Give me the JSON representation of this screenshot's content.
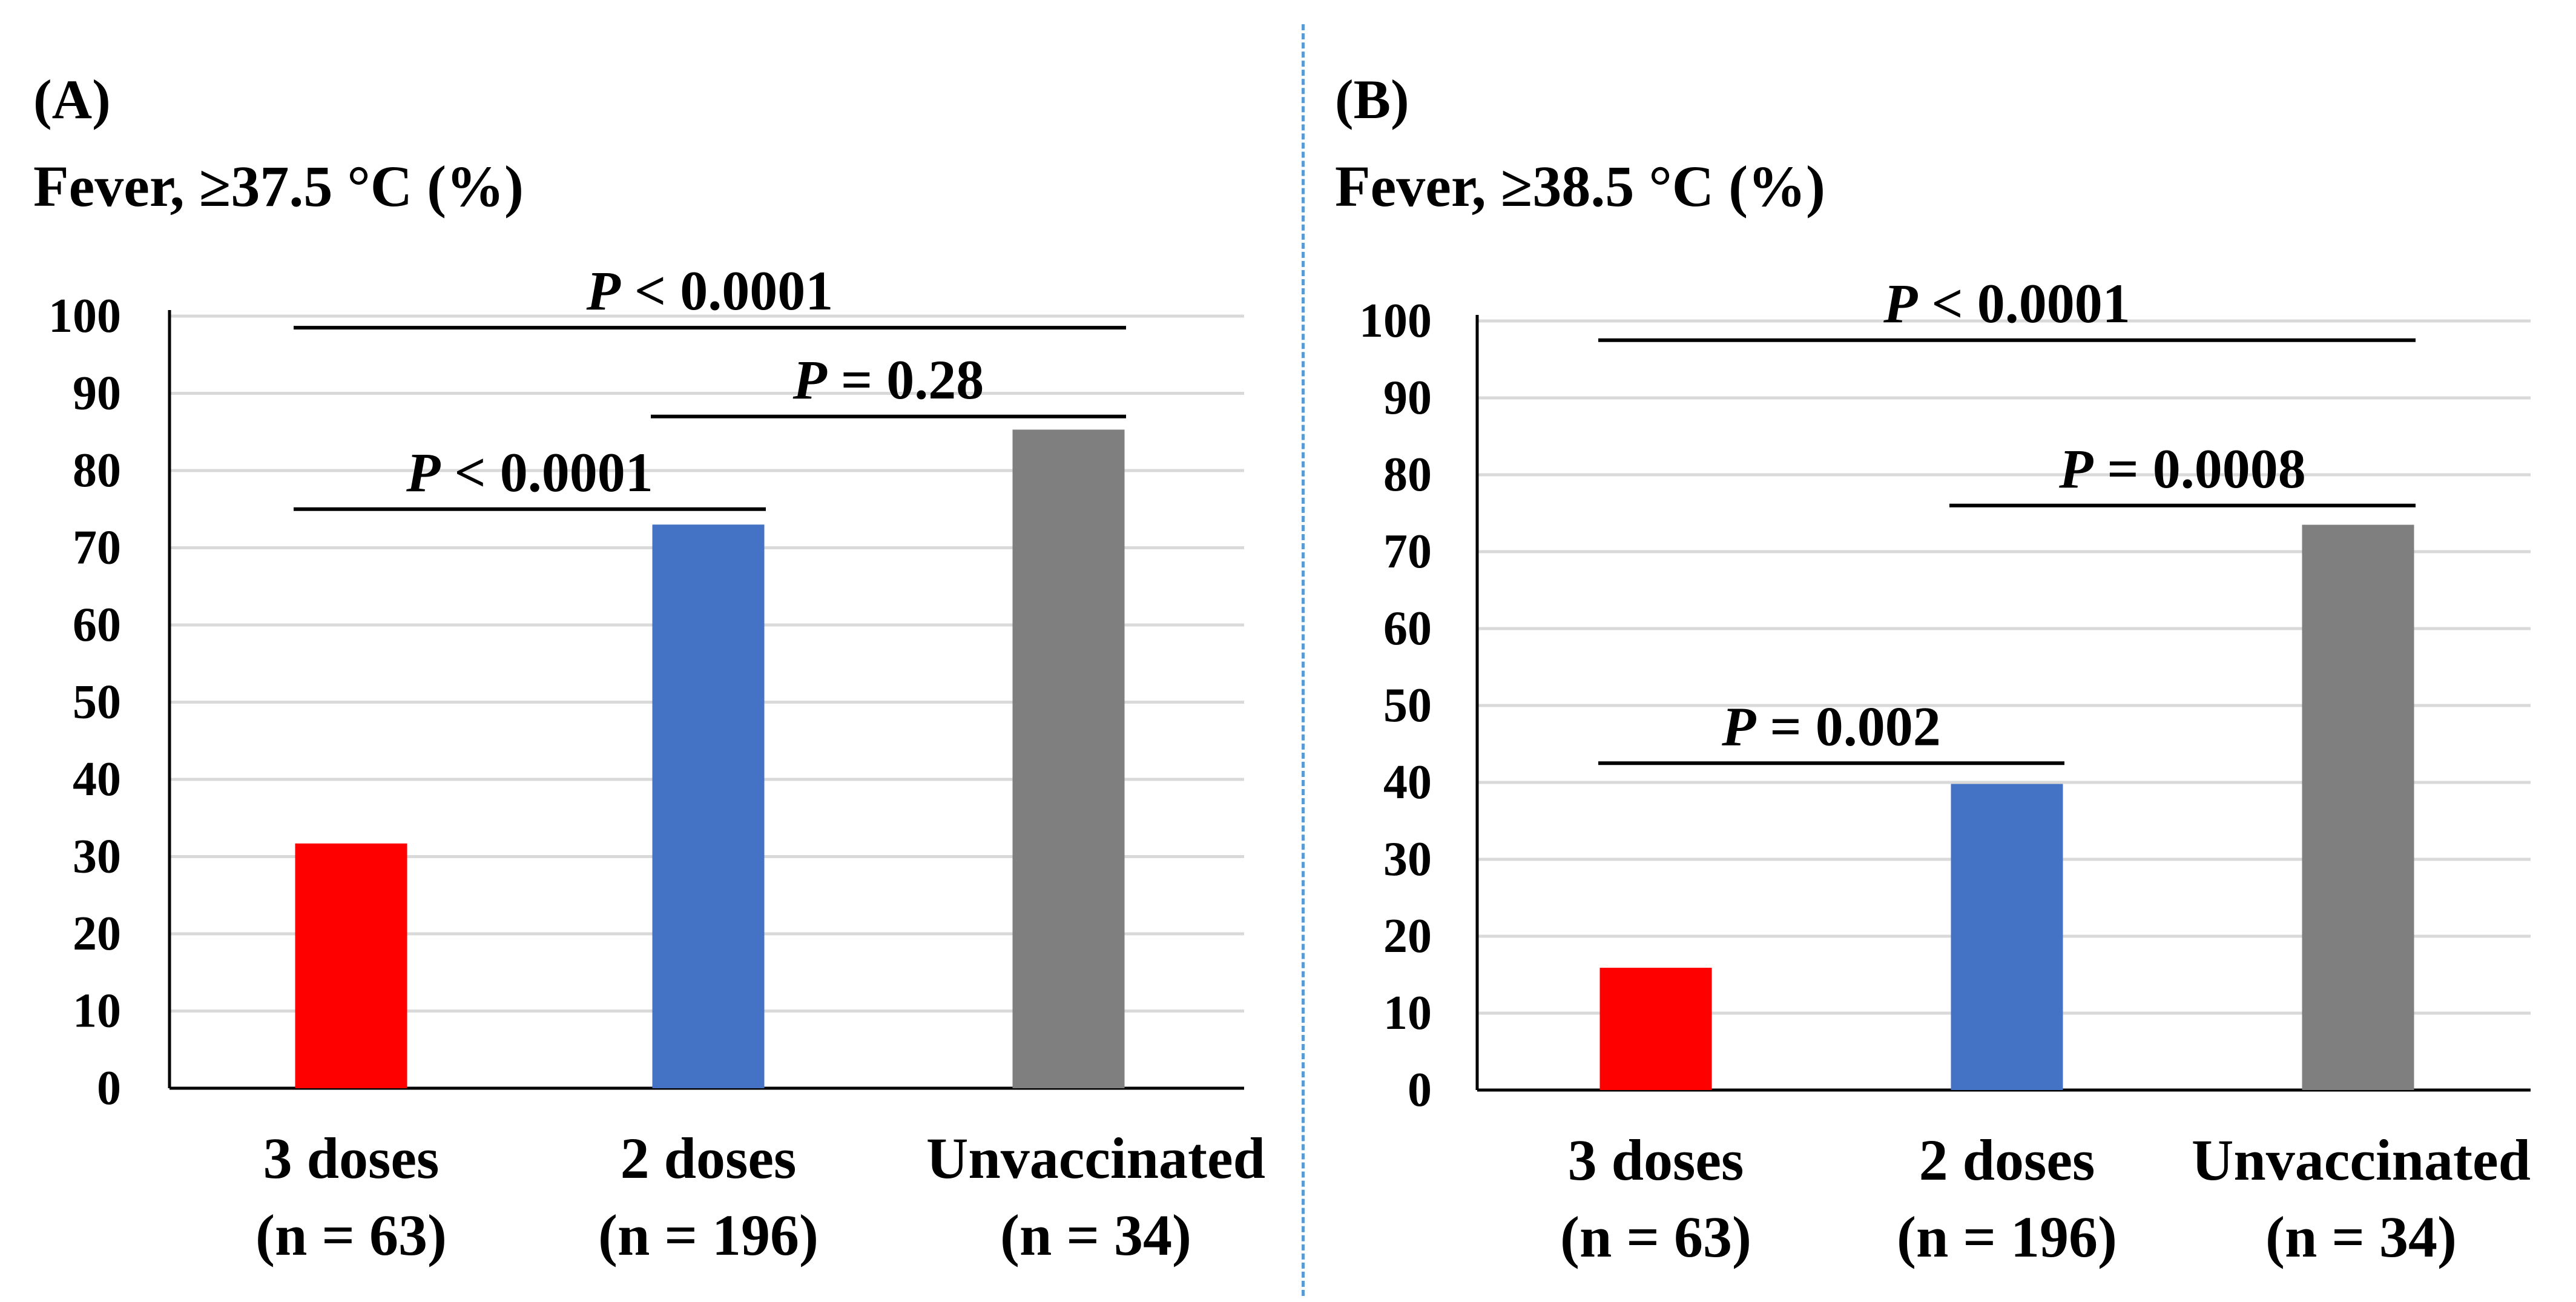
{
  "chart_data": [
    {
      "panel_label": "(A)",
      "title": "Fever, ≥37.5 °C (%)",
      "type": "bar",
      "categories": [
        {
          "name": "3 doses",
          "n": "(n = 63)"
        },
        {
          "name": "2 doses",
          "n": "(n = 196)"
        },
        {
          "name": "Unvaccinated",
          "n": "(n = 34)"
        }
      ],
      "values": [
        31.7,
        73.0,
        85.3
      ],
      "colors": [
        "#ff0000",
        "#4472c4",
        "#7f7f7f"
      ],
      "ylim": [
        0,
        100
      ],
      "yticks": [
        0,
        10,
        20,
        30,
        40,
        50,
        60,
        70,
        80,
        90,
        100
      ],
      "grid": true,
      "comparisons": [
        {
          "from": 0,
          "to": 2,
          "prefix": "P",
          "op": "<",
          "value": "0.0001",
          "at": 98.5
        },
        {
          "from": 1,
          "to": 2,
          "prefix": "P",
          "op": "=",
          "value": "0.28",
          "at": 87
        },
        {
          "from": 0,
          "to": 1,
          "prefix": "P",
          "op": "<",
          "value": "0.0001",
          "at": 75
        }
      ]
    },
    {
      "panel_label": "(B)",
      "title": "Fever, ≥38.5 °C (%)",
      "type": "bar",
      "categories": [
        {
          "name": "3 doses",
          "n": "(n = 63)"
        },
        {
          "name": "2 doses",
          "n": "(n = 196)"
        },
        {
          "name": "Unvaccinated",
          "n": "(n = 34)"
        }
      ],
      "values": [
        15.9,
        39.8,
        73.5
      ],
      "colors": [
        "#ff0000",
        "#4472c4",
        "#7f7f7f"
      ],
      "ylim": [
        0,
        100
      ],
      "yticks": [
        0,
        10,
        20,
        30,
        40,
        50,
        60,
        70,
        80,
        90,
        100
      ],
      "grid": true,
      "comparisons": [
        {
          "from": 0,
          "to": 2,
          "prefix": "P",
          "op": "<",
          "value": "0.0001",
          "at": 97.5
        },
        {
          "from": 1,
          "to": 2,
          "prefix": "P",
          "op": "=",
          "value": "0.0008",
          "at": 76
        },
        {
          "from": 0,
          "to": 1,
          "prefix": "P",
          "op": "=",
          "value": "0.002",
          "at": 42.5
        }
      ]
    }
  ]
}
